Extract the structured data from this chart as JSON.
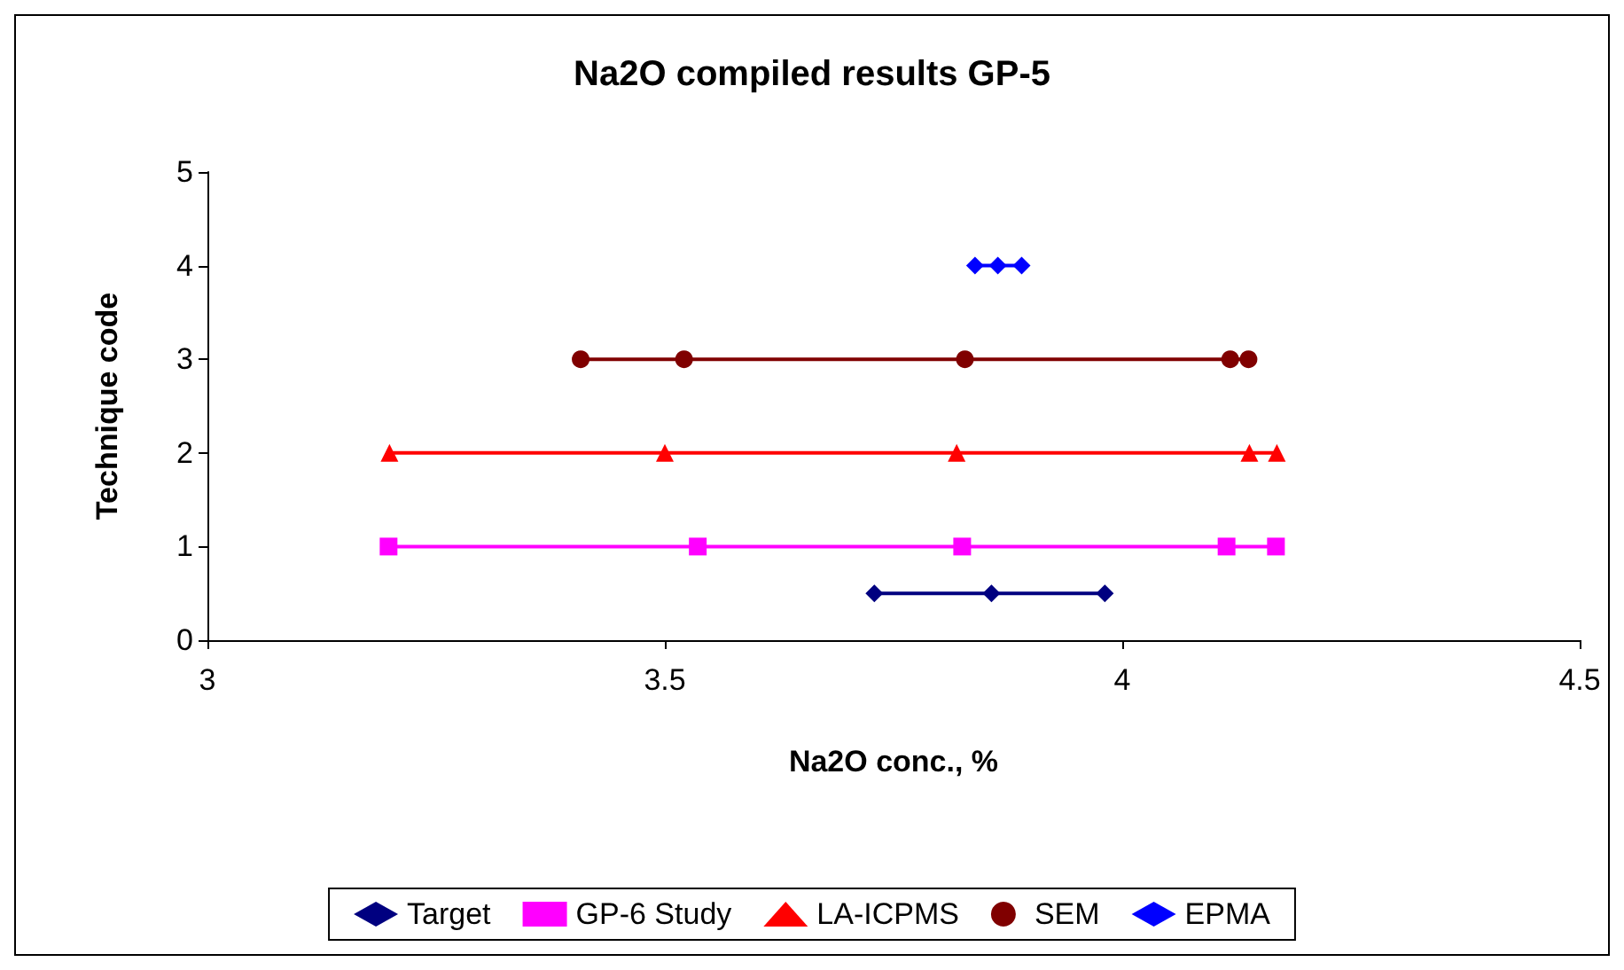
{
  "chart_data": {
    "type": "line",
    "title": "Na2O compiled results GP-5",
    "xlabel": "Na2O conc., %",
    "ylabel": "Technique code",
    "xlim": [
      3,
      4.5
    ],
    "xticks": [
      3,
      3.5,
      4,
      4.5
    ],
    "ylim": [
      0,
      5
    ],
    "yticks": [
      0,
      1,
      2,
      3,
      4,
      5
    ],
    "grid": false,
    "legend": "bottom",
    "series": [
      {
        "name": "Target",
        "color": "#000080",
        "marker": "diamond",
        "x": [
          3.729,
          3.857,
          3.981
        ],
        "values": [
          0.5,
          0.5,
          0.5
        ]
      },
      {
        "name": "GP-6 Study",
        "color": "#ff00ff",
        "marker": "square",
        "x": [
          3.198,
          3.536,
          3.825,
          4.114,
          4.168
        ],
        "values": [
          1,
          1,
          1,
          1,
          1
        ]
      },
      {
        "name": "LA-ICPMS",
        "color": "#ff0000",
        "marker": "triangle",
        "x": [
          3.199,
          3.5,
          3.819,
          4.139,
          4.169
        ],
        "values": [
          2,
          2,
          2,
          2,
          2
        ]
      },
      {
        "name": "SEM",
        "color": "#800000",
        "marker": "circle",
        "x": [
          3.408,
          3.521,
          3.828,
          4.118,
          4.138
        ],
        "values": [
          3,
          3,
          3,
          3,
          3
        ]
      },
      {
        "name": "EPMA",
        "color": "#0000ff",
        "marker": "diamond",
        "x": [
          3.839,
          3.864,
          3.89
        ],
        "values": [
          4,
          4,
          4
        ]
      }
    ]
  }
}
